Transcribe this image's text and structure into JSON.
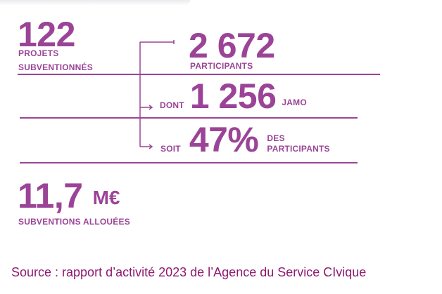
{
  "projects": {
    "value": "122",
    "label_line1": "PROJETS",
    "label_line2": "SUBVENTIONNÉS"
  },
  "participants": {
    "value": "2 672",
    "label": "PARTICIPANTS"
  },
  "jamo": {
    "prefix": "DONT",
    "value": "1 256",
    "suffix": "JAMO"
  },
  "share": {
    "prefix": "SOIT",
    "value": "47%",
    "suffix_line1": "DES",
    "suffix_line2": "PARTICIPANTS"
  },
  "funding": {
    "value": "11,7",
    "unit": "M€",
    "label": "SUBVENTIONS ALLOUÉES"
  },
  "source": "Source : rapport d’activité 2023 de l’Agence du Service CIvique",
  "colors": {
    "accent": "#9b4497",
    "source_text": "#8e1a6f"
  }
}
